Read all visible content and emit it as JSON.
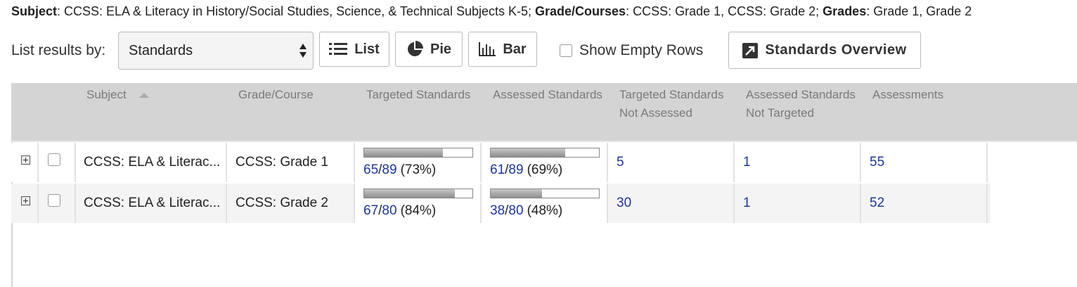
{
  "filters": [
    {
      "label": "Subject",
      "text": ": CCSS: ELA & Literacy in History/Social Studies, Science, & Technical Subjects K-5; "
    },
    {
      "label": "Grade/Courses",
      "text": ": CCSS: Grade 1, CCSS: Grade 2; "
    },
    {
      "label": "Grades",
      "text": ": Grade 1, Grade 2"
    }
  ],
  "toolbar": {
    "label": "List results by:",
    "select": "Standards",
    "buttons": [
      "List",
      "Pie",
      "Bar"
    ],
    "checkbox": "Show Empty Rows",
    "overview": "Standards Overview"
  },
  "table": {
    "separator": "/",
    "columns": [
      "Subject",
      "Grade/Course",
      "Targeted Standards",
      "Assessed Standards",
      "Targeted Standards Not Assessed",
      "Assessed Standards Not Targeted",
      "Assessments"
    ],
    "rows": [
      {
        "subject": "CCSS: ELA & Literac...",
        "grade": "CCSS: Grade 1",
        "targeted": {
          "count": 65,
          "total": 89,
          "percent": "(73%)"
        },
        "assessed": {
          "count": 61,
          "total": 89,
          "percent": "(69%)"
        },
        "not_assessed": 5,
        "not_targeted": 1,
        "assessments": 55
      },
      {
        "subject": "CCSS: ELA & Literac...",
        "grade": "CCSS: Grade 2",
        "targeted": {
          "count": 67,
          "total": 80,
          "percent": "(84%)"
        },
        "assessed": {
          "count": 38,
          "total": 80,
          "percent": "(48%)"
        },
        "not_assessed": 30,
        "not_targeted": 1,
        "assessments": 52
      }
    ]
  }
}
